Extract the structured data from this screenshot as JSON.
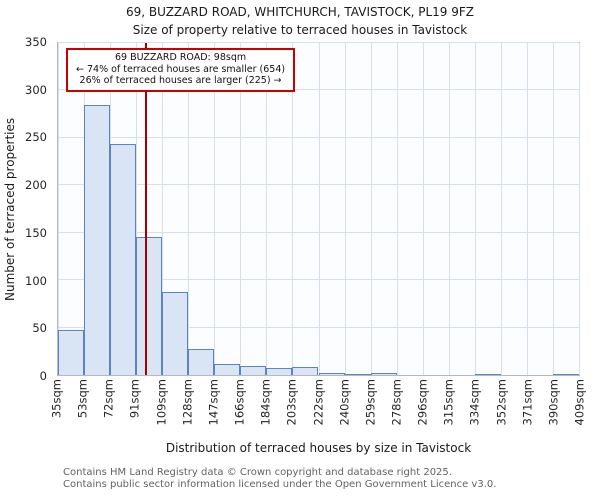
{
  "title": {
    "line1": "69, BUZZARD ROAD, WHITCHURCH, TAVISTOCK, PL19 9FZ",
    "line2": "Size of property relative to terraced houses in Tavistock"
  },
  "chart_data": {
    "type": "bar",
    "title": "69, BUZZARD ROAD, WHITCHURCH, TAVISTOCK, PL19 9FZ — Size of property relative to terraced houses in Tavistock",
    "xlabel": "Distribution of terraced houses by size in Tavistock",
    "ylabel": "Number of terraced properties",
    "ylim": [
      0,
      350
    ],
    "yticks": [
      0,
      50,
      100,
      150,
      200,
      250,
      300,
      350
    ],
    "grid": true,
    "bin_labels": [
      "35sqm",
      "53sqm",
      "72sqm",
      "91sqm",
      "109sqm",
      "128sqm",
      "147sqm",
      "166sqm",
      "184sqm",
      "203sqm",
      "222sqm",
      "240sqm",
      "259sqm",
      "278sqm",
      "296sqm",
      "315sqm",
      "334sqm",
      "352sqm",
      "371sqm",
      "390sqm",
      "409sqm"
    ],
    "values": [
      47,
      285,
      244,
      146,
      88,
      27,
      12,
      9,
      7,
      8,
      2,
      1,
      2,
      0,
      0,
      0,
      1,
      0,
      0,
      1
    ],
    "marker": {
      "value_sqm": 98,
      "label": "69 BUZZARD ROAD: 98sqm",
      "smaller_line": "← 74% of terraced houses are smaller (654)",
      "larger_line": "26% of terraced houses are larger (225) →"
    },
    "colors": {
      "bar_fill": "#d9e5f5",
      "bar_border": "#5b84c4",
      "grid": "#d9dfe9",
      "marker_line": "#a40000",
      "annotation_border": "#cc0000"
    }
  },
  "footer": {
    "line1": "Contains HM Land Registry data © Crown copyright and database right 2025.",
    "line2": "Contains public sector information licensed under the Open Government Licence v3.0."
  }
}
